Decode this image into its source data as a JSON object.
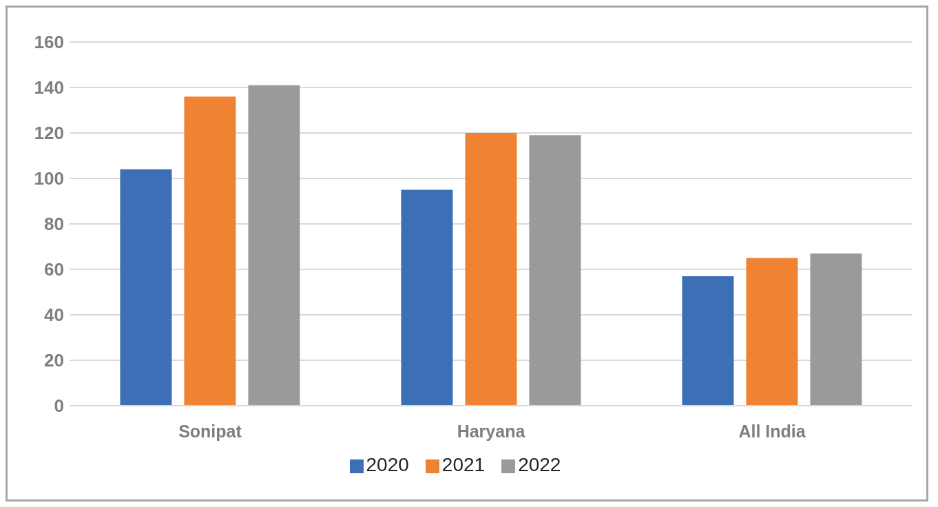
{
  "chart_data": {
    "type": "bar",
    "categories": [
      "Sonipat",
      "Haryana",
      "All India"
    ],
    "series": [
      {
        "name": "2020",
        "color": "#3d6fb6",
        "values": [
          104,
          95,
          57
        ]
      },
      {
        "name": "2021",
        "color": "#f08233",
        "values": [
          136,
          120,
          65
        ]
      },
      {
        "name": "2022",
        "color": "#999a9c",
        "values": [
          141,
          119,
          67
        ]
      }
    ],
    "ylim": [
      0,
      160
    ],
    "yticks": [
      0,
      20,
      40,
      60,
      80,
      100,
      120,
      140,
      160
    ],
    "grid": "y",
    "legend": "bottom"
  }
}
